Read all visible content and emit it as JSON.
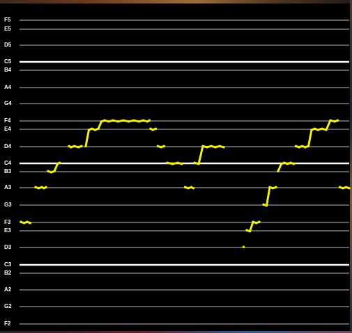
{
  "pitch_display": {
    "notes": [
      "F5",
      "E5",
      "D5",
      "C5",
      "B4",
      "A4",
      "G4",
      "F4",
      "E4",
      "D4",
      "C4",
      "B3",
      "A3",
      "G3",
      "F3",
      "E3",
      "D3",
      "C3",
      "B2",
      "A2",
      "G2",
      "F2"
    ],
    "c_lines": [
      "C5",
      "C4",
      "C3"
    ],
    "colors": {
      "background": "#000000",
      "staff_line": "#bdbdbd",
      "c_line": "#ffffff",
      "pitch_trace": "#f2ee17",
      "label": "#ffffff"
    },
    "pitch_trace_segments": [
      [
        [
          0,
          "F3"
        ],
        [
          3,
          "F3"
        ],
        [
          6,
          "F3"
        ],
        [
          9,
          "F3"
        ]
      ],
      [
        [
          14,
          "A3"
        ],
        [
          17,
          "A3"
        ],
        [
          20,
          "A3"
        ],
        [
          22,
          "A3"
        ],
        [
          24,
          "A3"
        ]
      ],
      [
        [
          26,
          "B3"
        ],
        [
          29,
          "B3"
        ],
        [
          32,
          "B3"
        ],
        [
          35,
          "C4"
        ],
        [
          37,
          "C4"
        ]
      ],
      [
        [
          46,
          "D4"
        ],
        [
          48,
          "D4"
        ],
        [
          51,
          "D4"
        ],
        [
          55,
          "D4"
        ],
        [
          58,
          "D4"
        ]
      ],
      [
        [
          62,
          "D4"
        ],
        [
          65,
          "E4"
        ],
        [
          68,
          "E4"
        ],
        [
          71,
          "E4"
        ],
        [
          74,
          "E4"
        ],
        [
          77,
          "F4"
        ],
        [
          80,
          "F4"
        ],
        [
          84,
          "F4"
        ],
        [
          88,
          "F4"
        ],
        [
          93,
          "F4"
        ],
        [
          98,
          "F4"
        ],
        [
          103,
          "F4"
        ],
        [
          108,
          "F4"
        ],
        [
          113,
          "F4"
        ],
        [
          117,
          "F4"
        ],
        [
          121,
          "F4"
        ],
        [
          123,
          "F4"
        ]
      ],
      [
        [
          124,
          "E4"
        ],
        [
          126,
          "E4"
        ],
        [
          129,
          "E4"
        ]
      ],
      [
        [
          131,
          "D4"
        ],
        [
          134,
          "D4"
        ],
        [
          137,
          "D4"
        ]
      ],
      [
        [
          140,
          "C4"
        ],
        [
          145,
          "C4"
        ],
        [
          150,
          "C4"
        ],
        [
          154,
          "C4"
        ]
      ],
      [
        [
          157,
          "A3"
        ],
        [
          160,
          "A3"
        ],
        [
          163,
          "A3"
        ],
        [
          165,
          "A3"
        ]
      ],
      [
        [
          166,
          "C4"
        ],
        [
          170,
          "C4"
        ],
        [
          174,
          "D4"
        ],
        [
          178,
          "D4"
        ],
        [
          182,
          "D4"
        ],
        [
          186,
          "D4"
        ],
        [
          190,
          "D4"
        ],
        [
          194,
          "D4"
        ]
      ],
      [
        [
          213,
          "D3"
        ]
      ],
      [
        [
          216,
          "E3"
        ],
        [
          219,
          "E3"
        ],
        [
          222,
          "F3"
        ],
        [
          225,
          "F3"
        ],
        [
          228,
          "F3"
        ]
      ],
      [
        [
          232,
          "G3"
        ],
        [
          235,
          "G3"
        ],
        [
          238,
          "A3"
        ],
        [
          241,
          "A3"
        ],
        [
          244,
          "A3"
        ]
      ],
      [
        [
          246,
          "B3"
        ],
        [
          249,
          "C4"
        ],
        [
          252,
          "C4"
        ],
        [
          255,
          "C4"
        ],
        [
          258,
          "C4"
        ],
        [
          261,
          "C4"
        ]
      ],
      [
        [
          263,
          "D4"
        ],
        [
          266,
          "D4"
        ],
        [
          269,
          "D4"
        ],
        [
          272,
          "D4"
        ],
        [
          275,
          "D4"
        ],
        [
          278,
          "E4"
        ],
        [
          281,
          "E4"
        ],
        [
          284,
          "E4"
        ],
        [
          288,
          "E4"
        ],
        [
          292,
          "E4"
        ],
        [
          296,
          "F4"
        ],
        [
          300,
          "F4"
        ],
        [
          303,
          "F4"
        ]
      ],
      [
        [
          305,
          "A3"
        ],
        [
          308,
          "A3"
        ],
        [
          311,
          "A3"
        ],
        [
          314,
          "A3"
        ]
      ]
    ]
  }
}
